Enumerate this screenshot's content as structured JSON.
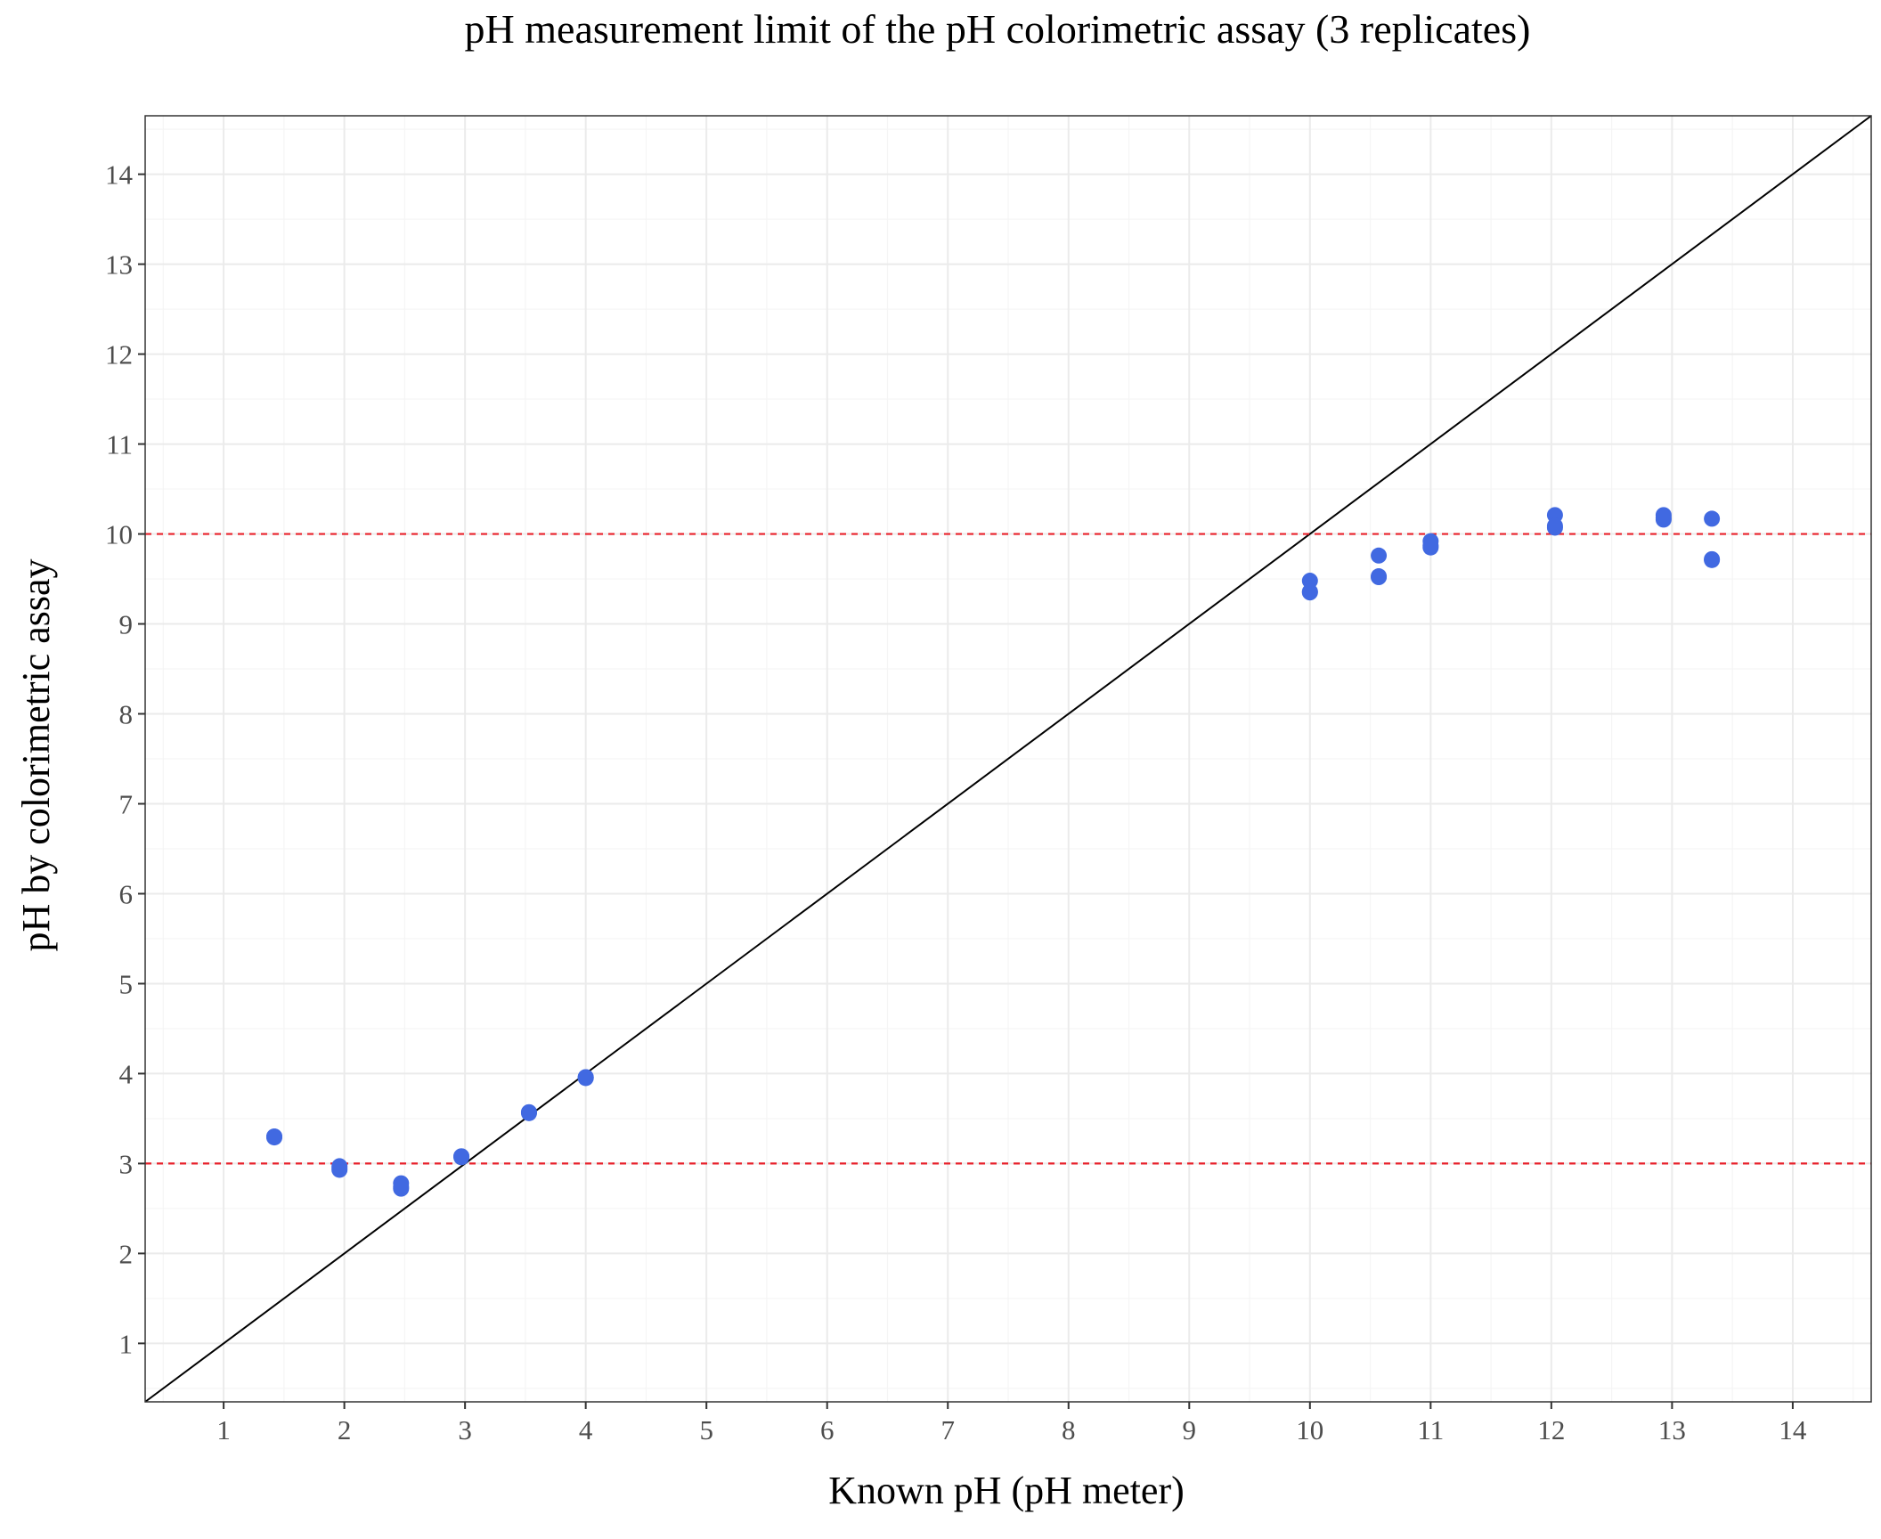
{
  "chart_data": {
    "type": "scatter",
    "title": "pH measurement limit of the pH colorimetric assay (3 replicates)",
    "xlabel": "Known pH (pH meter)",
    "ylabel": "pH by colorimetric assay",
    "xlim": [
      0.35,
      14.65
    ],
    "ylim": [
      0.35,
      14.65
    ],
    "xticks": [
      "1",
      "2",
      "3",
      "4",
      "5",
      "6",
      "7",
      "8",
      "9",
      "10",
      "11",
      "12",
      "13",
      "14"
    ],
    "yticks": [
      "1",
      "2",
      "3",
      "4",
      "5",
      "6",
      "7",
      "8",
      "9",
      "10",
      "11",
      "12",
      "13",
      "14"
    ],
    "grid": true,
    "series": [
      {
        "points": [
          {
            "x": 1.42,
            "y": 3.3
          },
          {
            "x": 1.42,
            "y": 3.29
          },
          {
            "x": 1.42,
            "y": 3.3
          },
          {
            "x": 1.96,
            "y": 2.97
          },
          {
            "x": 1.96,
            "y": 2.93
          },
          {
            "x": 1.96,
            "y": 2.95
          },
          {
            "x": 2.47,
            "y": 2.78
          },
          {
            "x": 2.47,
            "y": 2.72
          },
          {
            "x": 2.47,
            "y": 2.74
          },
          {
            "x": 2.97,
            "y": 3.08
          },
          {
            "x": 2.97,
            "y": 3.07
          },
          {
            "x": 2.97,
            "y": 3.08
          },
          {
            "x": 3.53,
            "y": 3.57
          },
          {
            "x": 3.53,
            "y": 3.56
          },
          {
            "x": 3.53,
            "y": 3.57
          },
          {
            "x": 4.0,
            "y": 3.96
          },
          {
            "x": 4.0,
            "y": 3.95
          },
          {
            "x": 4.0,
            "y": 3.96
          },
          {
            "x": 10.0,
            "y": 9.48
          },
          {
            "x": 10.0,
            "y": 9.35
          },
          {
            "x": 10.0,
            "y": 9.36
          },
          {
            "x": 10.57,
            "y": 9.76
          },
          {
            "x": 10.57,
            "y": 9.52
          },
          {
            "x": 10.57,
            "y": 9.53
          },
          {
            "x": 11.0,
            "y": 9.92
          },
          {
            "x": 11.0,
            "y": 9.85
          },
          {
            "x": 11.0,
            "y": 9.87
          },
          {
            "x": 12.03,
            "y": 10.21
          },
          {
            "x": 12.03,
            "y": 10.07
          },
          {
            "x": 12.03,
            "y": 10.09
          },
          {
            "x": 12.93,
            "y": 10.21
          },
          {
            "x": 12.93,
            "y": 10.16
          },
          {
            "x": 12.93,
            "y": 10.18
          },
          {
            "x": 13.33,
            "y": 10.17
          },
          {
            "x": 13.33,
            "y": 9.71
          },
          {
            "x": 13.33,
            "y": 9.72
          }
        ]
      }
    ],
    "reference_lines": [
      {
        "kind": "identity",
        "slope": 1,
        "intercept": 0
      },
      {
        "kind": "horizontal",
        "y": 10
      },
      {
        "kind": "horizontal",
        "y": 3
      }
    ],
    "colors": {
      "points": "#4169E1",
      "identity_line": "#000000",
      "limit_lines": "#E8202A",
      "major_grid": "#EBEBEB",
      "minor_grid": "#F5F5F5",
      "panel_border": "#333333",
      "tick_text": "#4D4D4D"
    }
  }
}
